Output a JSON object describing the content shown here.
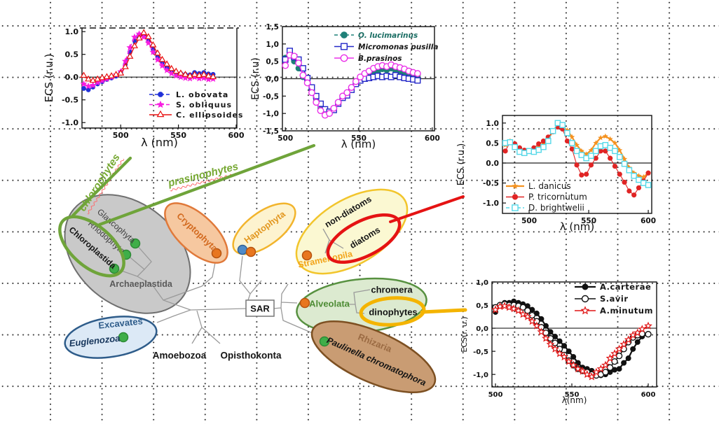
{
  "palette": {
    "archaeplastida_fill": "#c9c9c9",
    "archaeplastida_stroke": "#6f6f6f",
    "chloroplastida_green": "#6fa43a",
    "excavates_fill": "#dce9f6",
    "excavates_stroke": "#2e5c8a",
    "cryptophyta_fill": "#f6c8a0",
    "cryptophyta_stroke": "#e0793a",
    "haptophyta_fill": "#fdf3cf",
    "haptophyta_stroke": "#f2b42c",
    "stramenopila_fill": "#fbf8d2",
    "stramenopila_stroke": "#f2c52c",
    "alveolata_fill": "#dcead0",
    "alveolata_stroke": "#579140",
    "rhizaria_fill": "#c99c73",
    "rhizaria_stroke": "#7d5022",
    "diatoms_red": "#e51313",
    "dinophytes_gold": "#f4b400",
    "dot_green": "#3fae49",
    "dot_green_stroke": "#2c8a35",
    "dot_orange": "#e8761f",
    "dot_orange_stroke": "#b5520f",
    "dot_blue": "#4f8bc8",
    "dot_blue_stroke": "#2f5f96",
    "tree_line": "#9a9a9a",
    "sar_fill": "#ffffff",
    "sar_stroke": "#777777",
    "label_dark": "#151515",
    "label_gray": "#595959",
    "gray_text": "#3f3f3f",
    "crypt_text": "#d2691e",
    "hapto_text": "#e2961e",
    "stram_text": "#f2a41a",
    "alveo_text": "#4e8c35",
    "rhiz_text": "#9b6b43",
    "excav_text": "#2e5c8a",
    "eugl_text": "#17365c",
    "green_label": "#76a832"
  },
  "diagram": {
    "labels": {
      "glaucophyta": "Glaucophyta",
      "rhodophyta": "Rhodophyta",
      "chloroplastida": "Chloroplastida",
      "archaeplastida": "Archaeplastida",
      "cryptophyta": "Cryptophyta",
      "haptophyta": "Haptophyta",
      "non_diatoms": "non-diatoms",
      "diatoms": "diatoms",
      "stramenopila": "Stramenopila",
      "chromera": "chromera",
      "dinophytes": "dinophytes",
      "alveolata": "Alveolata",
      "rhizaria": "Rhizaria",
      "paulinella": "Paulinella chromatophora",
      "excavates": "Excavates",
      "euglenozoa": "Euglenozoa",
      "amoebozoa": "Amoebozoa",
      "opisthokonta": "Opisthokonta",
      "sar": "SAR",
      "chlorophytes": "chlorophytes",
      "prasinophytes": "prasinophytes"
    }
  },
  "chart_data": [
    {
      "id": "chlorophytes",
      "type": "line",
      "xlabel": "λ (nm)",
      "ylabel": "ECS (r.u.)",
      "xlim": [
        466.5,
        600.6
      ],
      "ylim": [
        -1.12,
        1.08
      ],
      "xticks": [
        500,
        550,
        600
      ],
      "xtick_labels": [
        "500",
        "550",
        "600"
      ],
      "yticks": [
        1.0,
        0.5,
        0.0,
        -0.5,
        -1.0
      ],
      "ytick_labels": [
        "1.0",
        "0.5",
        "0.0",
        "-0.5",
        "-1.0"
      ],
      "x": [
        468,
        472,
        476,
        480,
        484,
        488,
        492,
        496,
        500,
        504,
        508,
        512,
        516,
        520,
        524,
        528,
        532,
        536,
        540,
        544,
        548,
        552,
        556,
        560,
        564,
        568,
        572,
        576,
        580
      ],
      "series": [
        {
          "name": "L. obovata",
          "color": "#2030d8",
          "line": "dashed",
          "lw": 1.6,
          "marker": "circle",
          "msize": 3.4,
          "y": [
            -0.25,
            -0.28,
            -0.22,
            -0.15,
            -0.1,
            -0.05,
            -0.02,
            0.02,
            0.1,
            0.28,
            0.55,
            0.8,
            0.93,
            0.9,
            0.8,
            0.62,
            0.45,
            0.32,
            0.22,
            0.15,
            0.1,
            0.08,
            0.06,
            0.05,
            0.1,
            0.08,
            0.1,
            0.07,
            0.06
          ]
        },
        {
          "name": "S. obliquus",
          "color": "#f81ce0",
          "line": "dashed",
          "lw": 1.6,
          "marker": "star",
          "msize": 5.2,
          "y": [
            -0.15,
            -0.2,
            -0.18,
            -0.12,
            -0.08,
            -0.04,
            0.0,
            0.05,
            0.12,
            0.35,
            0.65,
            0.88,
            0.95,
            0.88,
            0.75,
            0.55,
            0.38,
            0.25,
            0.15,
            0.08,
            0.03,
            0.0,
            -0.02,
            -0.03,
            0.0,
            -0.03,
            -0.02,
            -0.05,
            -0.04
          ]
        },
        {
          "name": "C. ellipsoides",
          "color": "#e81010",
          "line": "solid",
          "lw": 1.4,
          "marker": "triangle-open",
          "msize": 4.6,
          "y": [
            0.03,
            -0.05,
            -0.08,
            -0.05,
            -0.02,
            0.0,
            0.02,
            0.05,
            0.08,
            0.22,
            0.45,
            0.68,
            0.85,
            0.97,
            0.88,
            0.7,
            0.52,
            0.38,
            0.28,
            0.18,
            0.12,
            0.08,
            0.05,
            0.02,
            0.05,
            0.03,
            0.05,
            0.02,
            0.0
          ]
        }
      ]
    },
    {
      "id": "prasinophytes",
      "type": "line",
      "xlabel": "λ (nm)",
      "ylabel": "ECS (r.u)",
      "xlim": [
        498,
        601.5
      ],
      "ylim": [
        -1.5,
        1.5
      ],
      "xticks": [
        500,
        550,
        600
      ],
      "xtick_labels": [
        "500",
        "550",
        "600"
      ],
      "yticks": [
        1.5,
        1.0,
        0.5,
        0.0,
        -0.5,
        -1.0,
        -1.5
      ],
      "ytick_labels": [
        "1,5",
        "1,0",
        "0,5",
        "0,0",
        "-0,5",
        "-1,0",
        "-1,5"
      ],
      "x": [
        500,
        503,
        506,
        509,
        512,
        515,
        518,
        521,
        524,
        527,
        530,
        533,
        536,
        539,
        542,
        545,
        548,
        551,
        554,
        557,
        560,
        563,
        566,
        569,
        572,
        575,
        578,
        581,
        584,
        587,
        590
      ],
      "series": [
        {
          "name": "O. lucimarinus",
          "color": "#1f8078",
          "line": "dashed",
          "lw": 1.5,
          "marker": "circle",
          "msize": 4.4,
          "legend_color": "#1b6e64",
          "y": [
            0.6,
            0.68,
            0.5,
            0.3,
            0.05,
            -0.1,
            -0.35,
            -0.62,
            -0.85,
            -1.02,
            -0.95,
            -0.88,
            -0.7,
            -0.52,
            -0.42,
            -0.28,
            -0.1,
            0.02,
            0.08,
            0.12,
            0.18,
            0.22,
            0.28,
            0.25,
            0.3,
            0.22,
            0.18,
            0.12,
            0.1,
            0.08,
            0.1
          ]
        },
        {
          "name": "Micromonas pusilla",
          "color": "#2428c8",
          "line": "solid",
          "lw": 1.5,
          "marker": "square-open",
          "msize": 3.8,
          "y": [
            0.55,
            0.8,
            0.62,
            0.55,
            0.3,
            0.02,
            -0.25,
            -0.5,
            -0.72,
            -0.88,
            -0.95,
            -0.9,
            -0.72,
            -0.55,
            -0.48,
            -0.32,
            -0.15,
            -0.05,
            0.0,
            0.02,
            0.05,
            0.08,
            0.05,
            0.08,
            0.05,
            0.1,
            0.05,
            0.02,
            0.0,
            -0.02,
            -0.05
          ]
        },
        {
          "name": "B.prasinos",
          "color": "#ea30e8",
          "line": "solid",
          "lw": 1.5,
          "marker": "circle-open",
          "msize": 4.2,
          "y": [
            0.38,
            0.68,
            0.65,
            0.45,
            0.1,
            -0.12,
            -0.4,
            -0.68,
            -0.92,
            -1.05,
            -1.0,
            -0.85,
            -0.68,
            -0.5,
            -0.4,
            -0.25,
            -0.08,
            0.05,
            0.15,
            0.22,
            0.3,
            0.35,
            0.38,
            0.35,
            0.4,
            0.35,
            0.32,
            0.28,
            0.22,
            0.18,
            0.15
          ]
        }
      ]
    },
    {
      "id": "diatoms",
      "type": "line",
      "xlabel": "λ (nm)",
      "ylabel": "ECS (r.u.)",
      "xlim": [
        477.6,
        602.9
      ],
      "ylim": [
        -1.26,
        1.19
      ],
      "xticks": [
        500,
        550,
        600
      ],
      "xtick_labels": [
        "500",
        "550",
        "600"
      ],
      "yticks": [
        1.0,
        0.5,
        0.0,
        -0.5,
        -1.0
      ],
      "ytick_labels": [
        "1.0",
        "0.5",
        "0.0",
        "-0.5",
        "-1.0"
      ],
      "x": [
        480,
        484,
        488,
        492,
        496,
        500,
        504,
        508,
        512,
        516,
        520,
        524,
        528,
        532,
        536,
        540,
        544,
        548,
        552,
        556,
        560,
        564,
        568,
        572,
        576,
        580,
        584,
        588,
        592,
        596,
        600
      ],
      "series": [
        {
          "name": "L. danicus",
          "color": "#f49220",
          "line": "solid",
          "lw": 2.2,
          "marker": "star",
          "msize": 4.2,
          "y": [
            0.45,
            0.55,
            0.45,
            0.35,
            0.3,
            0.28,
            0.32,
            0.4,
            0.48,
            0.6,
            0.8,
            0.95,
            0.9,
            0.82,
            0.65,
            0.45,
            0.3,
            0.22,
            0.32,
            0.5,
            0.63,
            0.67,
            0.6,
            0.5,
            0.32,
            0.1,
            -0.12,
            -0.25,
            -0.32,
            -0.35,
            -0.25
          ]
        },
        {
          "name": "P. tricornutum",
          "color": "#e02424",
          "line": "solid",
          "lw": 1.1,
          "marker": "circle",
          "msize": 3.6,
          "y": [
            0.3,
            0.52,
            0.48,
            0.38,
            0.32,
            0.3,
            0.38,
            0.48,
            0.55,
            0.65,
            0.78,
            0.9,
            0.85,
            0.55,
            0.35,
            -0.05,
            -0.3,
            -0.28,
            -0.05,
            0.12,
            0.3,
            0.3,
            0.12,
            -0.08,
            -0.28,
            -0.48,
            -0.7,
            -0.8,
            -0.62,
            -0.45,
            -0.25
          ]
        },
        {
          "name": "D. brightwelii",
          "color": "#55d8e8",
          "line": "dashed",
          "lw": 1.5,
          "marker": "square-open",
          "msize": 3.6,
          "y": [
            0.5,
            0.52,
            0.4,
            0.28,
            0.25,
            0.3,
            0.28,
            0.33,
            0.4,
            0.55,
            0.8,
            1.0,
            0.95,
            0.75,
            0.5,
            0.3,
            0.2,
            0.12,
            0.18,
            0.3,
            0.42,
            0.45,
            0.38,
            0.3,
            0.15,
            -0.02,
            -0.18,
            -0.32,
            -0.42,
            -0.5,
            -0.55
          ]
        }
      ]
    },
    {
      "id": "dinophytes",
      "type": "line",
      "xlabel": "λ(nm)",
      "ylabel": "ECS(r. u.)",
      "xlim": [
        497.7,
        605.5
      ],
      "ylim": [
        -1.27,
        1.0
      ],
      "xticks": [
        500,
        550,
        600
      ],
      "xtick_labels": [
        "500",
        "550",
        "600"
      ],
      "yticks": [
        1.0,
        0.5,
        0.0,
        -0.5,
        -1.0
      ],
      "ytick_labels": [
        "1,0",
        "0,5",
        "0,0",
        "-0,5",
        "-1,0"
      ],
      "x": [
        500,
        503,
        506,
        509,
        512,
        515,
        518,
        521,
        524,
        527,
        530,
        533,
        536,
        539,
        542,
        545,
        548,
        551,
        554,
        557,
        560,
        563,
        566,
        569,
        572,
        575,
        578,
        581,
        584,
        587,
        590,
        593,
        596,
        600
      ],
      "series": [
        {
          "name": "A.carterae",
          "color": "#111111",
          "line": "solid",
          "lw": 2.2,
          "marker": "circle",
          "msize": 4.0,
          "y": [
            0.35,
            0.5,
            0.55,
            0.55,
            0.58,
            0.55,
            0.52,
            0.48,
            0.4,
            0.32,
            0.2,
            0.05,
            -0.08,
            -0.18,
            -0.28,
            -0.38,
            -0.5,
            -0.62,
            -0.75,
            -0.85,
            -0.88,
            -0.92,
            -1.0,
            -1.02,
            -1.0,
            -0.95,
            -0.9,
            -0.88,
            -0.75,
            -0.65,
            -0.45,
            -0.3,
            -0.18,
            -0.12
          ]
        },
        {
          "name": "S.avir",
          "color": "#111111",
          "line": "solid",
          "lw": 1.5,
          "marker": "circle-open",
          "msize": 4.0,
          "y": [
            0.45,
            0.5,
            0.52,
            0.5,
            0.5,
            0.48,
            0.45,
            0.38,
            0.28,
            0.15,
            0.02,
            -0.1,
            -0.22,
            -0.32,
            -0.45,
            -0.58,
            -0.7,
            -0.8,
            -0.88,
            -0.92,
            -0.95,
            -1.0,
            -1.02,
            -1.0,
            -0.95,
            -0.85,
            -0.72,
            -0.6,
            -0.45,
            -0.3,
            -0.2,
            -0.15,
            -0.12,
            -0.13
          ]
        },
        {
          "name": "A.minutum",
          "color": "#e01414",
          "line": "solid",
          "lw": 1.5,
          "marker": "star-open",
          "msize": 4.6,
          "y": [
            0.4,
            0.47,
            0.48,
            0.45,
            0.42,
            0.38,
            0.3,
            0.25,
            0.15,
            0.05,
            -0.08,
            -0.22,
            -0.35,
            -0.45,
            -0.55,
            -0.62,
            -0.72,
            -0.8,
            -0.88,
            -0.93,
            -1.0,
            -1.05,
            -0.95,
            -0.88,
            -0.8,
            -0.65,
            -0.55,
            -0.45,
            -0.35,
            -0.25,
            -0.15,
            -0.1,
            -0.02,
            0.05
          ]
        }
      ]
    }
  ]
}
